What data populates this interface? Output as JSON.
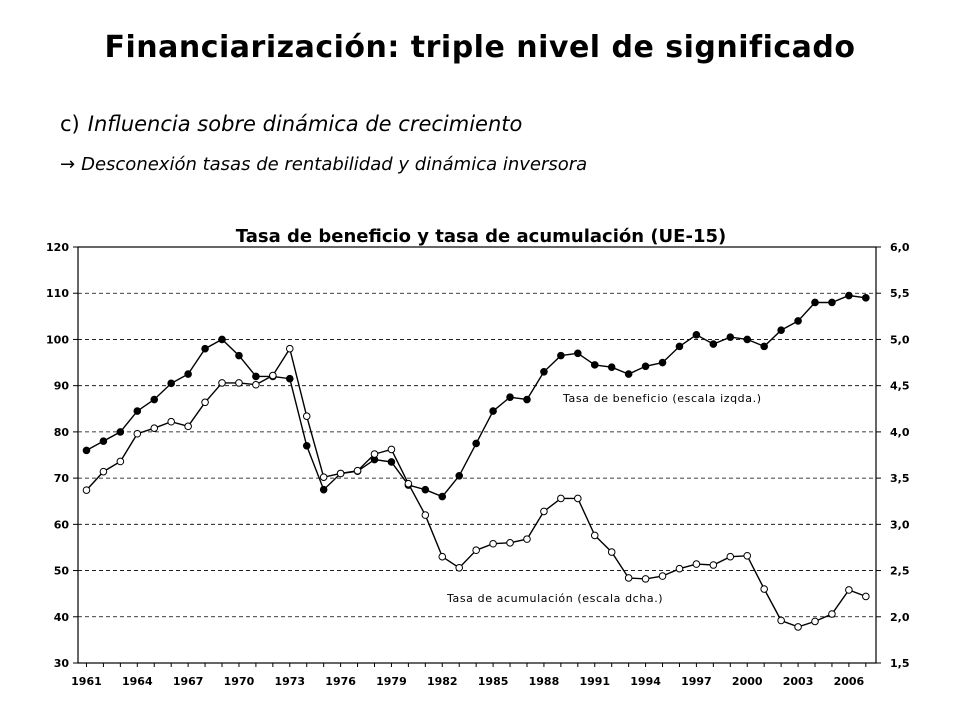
{
  "slide": {
    "title": "Financiarización: triple nivel de significado",
    "subtitle_letter": "c)",
    "subtitle_text": "Influencia sobre dinámica de crecimiento",
    "bullet_arrow": "→",
    "bullet_text": "Desconexión tasas de rentabilidad y dinámica inversora"
  },
  "chart_data": {
    "type": "line",
    "title": "Tasa de beneficio y tasa de acumulación (UE-15)",
    "x": [
      1961,
      1962,
      1963,
      1964,
      1965,
      1966,
      1967,
      1968,
      1969,
      1970,
      1971,
      1972,
      1973,
      1974,
      1975,
      1976,
      1977,
      1978,
      1979,
      1980,
      1981,
      1982,
      1983,
      1984,
      1985,
      1986,
      1987,
      1988,
      1989,
      1990,
      1991,
      1992,
      1993,
      1994,
      1995,
      1996,
      1997,
      1998,
      1999,
      2000,
      2001,
      2002,
      2003,
      2004,
      2005,
      2006,
      2007
    ],
    "x_ticks": [
      "1961",
      "1964",
      "1967",
      "1970",
      "1973",
      "1976",
      "1979",
      "1982",
      "1985",
      "1988",
      "1991",
      "1994",
      "1997",
      "2000",
      "2003",
      "2006"
    ],
    "y_left": {
      "range": [
        30,
        120
      ],
      "ticks": [
        "30",
        "40",
        "50",
        "60",
        "70",
        "80",
        "90",
        "100",
        "110",
        "120"
      ]
    },
    "y_right": {
      "range": [
        1.5,
        6.0
      ],
      "ticks": [
        "1,5",
        "2,0",
        "2,5",
        "3,0",
        "3,5",
        "4,0",
        "4,5",
        "5,0",
        "5,5",
        "6,0"
      ]
    },
    "grid": "horizontal dashed",
    "series": [
      {
        "name": "Tasa de beneficio (escala izqda.)",
        "axis": "left",
        "marker": "filled",
        "values": [
          76,
          78,
          80,
          84.5,
          87,
          90.5,
          92.5,
          98,
          100,
          96.5,
          92,
          92,
          91.5,
          77,
          67.5,
          71,
          71.5,
          74,
          73.5,
          68.5,
          67.5,
          66,
          70.5,
          77.5,
          84.5,
          87.5,
          87,
          93,
          96.5,
          97,
          94.5,
          94,
          92.5,
          94.2,
          95,
          98.5,
          101,
          99,
          100.5,
          100,
          98.5,
          102,
          104,
          108,
          108,
          109.5,
          109
        ]
      },
      {
        "name": "Tasa de acumulación (escala dcha.)",
        "axis": "right",
        "marker": "open",
        "values": [
          3.37,
          3.57,
          3.68,
          3.98,
          4.04,
          4.11,
          4.06,
          4.32,
          4.53,
          4.53,
          4.51,
          4.61,
          4.9,
          4.17,
          3.51,
          3.55,
          3.58,
          3.76,
          3.81,
          3.44,
          3.1,
          2.65,
          2.53,
          2.72,
          2.79,
          2.8,
          2.84,
          3.14,
          3.28,
          3.28,
          2.88,
          2.7,
          2.42,
          2.41,
          2.44,
          2.52,
          2.57,
          2.56,
          2.65,
          2.66,
          2.3,
          1.96,
          1.89,
          1.95,
          2.03,
          2.29,
          2.22
        ]
      }
    ]
  }
}
